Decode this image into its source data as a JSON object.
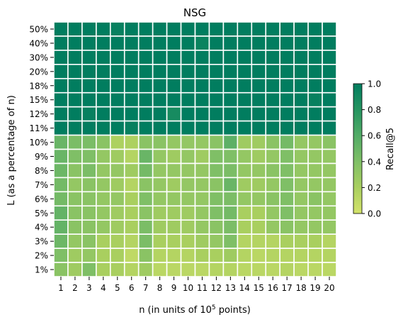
{
  "chart_data": {
    "type": "heatmap",
    "title": "NSG",
    "xlabel_prefix": "n (in units of 10",
    "xlabel_exponent": "5",
    "xlabel_suffix": " points)",
    "ylabel": "L (as a percentage of n)",
    "x_categories": [
      "1",
      "2",
      "3",
      "4",
      "5",
      "6",
      "7",
      "8",
      "9",
      "10",
      "11",
      "12",
      "13",
      "14",
      "15",
      "16",
      "17",
      "18",
      "19",
      "20"
    ],
    "y_categories": [
      "50%",
      "40%",
      "30%",
      "20%",
      "18%",
      "15%",
      "12%",
      "11%",
      "10%",
      "9%",
      "8%",
      "7%",
      "6%",
      "5%",
      "4%",
      "3%",
      "2%",
      "1%"
    ],
    "values": [
      [
        1,
        1,
        1,
        1,
        0.97,
        1,
        1,
        1,
        1,
        1,
        1,
        1,
        1,
        1,
        1,
        1,
        1,
        1,
        1,
        1
      ],
      [
        1,
        1,
        1,
        1,
        1,
        1,
        1,
        1,
        1,
        1,
        0.95,
        1,
        1,
        1,
        1,
        1,
        1,
        1,
        1,
        1
      ],
      [
        1,
        1,
        1,
        1,
        1,
        1,
        1,
        1,
        1,
        1,
        1,
        1,
        1,
        1,
        1,
        1,
        1,
        1,
        1,
        1
      ],
      [
        1,
        1,
        1,
        1,
        1,
        1,
        1,
        1,
        1,
        1,
        1,
        1,
        1,
        1,
        1,
        1,
        1,
        1,
        1,
        1
      ],
      [
        1,
        1,
        1,
        1,
        1,
        1,
        1,
        1,
        1,
        1,
        1,
        1,
        1,
        1,
        1,
        1,
        1,
        1,
        1,
        1
      ],
      [
        1,
        1,
        1,
        1,
        1,
        1,
        1,
        1,
        1,
        1,
        1,
        1,
        1,
        1,
        1,
        1,
        1,
        1,
        0.97,
        1
      ],
      [
        1,
        1,
        0.97,
        1,
        1,
        1,
        1,
        1,
        0.88,
        1,
        1,
        1,
        1,
        1,
        1,
        1,
        1,
        1,
        1,
        1
      ],
      [
        1,
        1,
        1,
        1,
        1,
        0.97,
        1,
        1,
        1,
        1,
        1,
        1,
        1,
        1,
        1,
        1,
        1,
        1,
        1,
        1
      ],
      [
        0.5,
        0.42,
        0.42,
        0.35,
        0.18,
        0.18,
        0.35,
        0.35,
        0.3,
        0.3,
        0.3,
        0.35,
        0.55,
        0.25,
        0.25,
        0.35,
        0.45,
        0.3,
        0.3,
        0.35
      ],
      [
        0.5,
        0.4,
        0.4,
        0.3,
        0.25,
        0.15,
        0.5,
        0.3,
        0.25,
        0.3,
        0.25,
        0.4,
        0.4,
        0.3,
        0.25,
        0.3,
        0.4,
        0.3,
        0.3,
        0.3
      ],
      [
        0.48,
        0.35,
        0.42,
        0.3,
        0.3,
        0.25,
        0.45,
        0.3,
        0.3,
        0.3,
        0.3,
        0.4,
        0.42,
        0.3,
        0.3,
        0.35,
        0.4,
        0.3,
        0.3,
        0.3
      ],
      [
        0.45,
        0.3,
        0.35,
        0.3,
        0.25,
        0.15,
        0.35,
        0.3,
        0.25,
        0.3,
        0.3,
        0.35,
        0.5,
        0.25,
        0.25,
        0.3,
        0.4,
        0.3,
        0.3,
        0.3
      ],
      [
        0.45,
        0.35,
        0.35,
        0.3,
        0.3,
        0.2,
        0.4,
        0.3,
        0.3,
        0.3,
        0.3,
        0.4,
        0.42,
        0.3,
        0.3,
        0.35,
        0.4,
        0.3,
        0.35,
        0.3
      ],
      [
        0.52,
        0.35,
        0.35,
        0.3,
        0.25,
        0.2,
        0.35,
        0.25,
        0.25,
        0.25,
        0.3,
        0.4,
        0.45,
        0.2,
        0.2,
        0.3,
        0.4,
        0.3,
        0.3,
        0.3
      ],
      [
        0.52,
        0.35,
        0.35,
        0.3,
        0.25,
        0.2,
        0.42,
        0.25,
        0.25,
        0.25,
        0.3,
        0.35,
        0.42,
        0.2,
        0.2,
        0.3,
        0.35,
        0.3,
        0.3,
        0.3
      ],
      [
        0.48,
        0.3,
        0.35,
        0.2,
        0.2,
        0.15,
        0.42,
        0.2,
        0.2,
        0.2,
        0.25,
        0.3,
        0.4,
        0.15,
        0.15,
        0.15,
        0.2,
        0.2,
        0.2,
        0.15
      ],
      [
        0.4,
        0.25,
        0.3,
        0.2,
        0.2,
        0.1,
        0.35,
        0.15,
        0.15,
        0.15,
        0.2,
        0.2,
        0.25,
        0.15,
        0.12,
        0.15,
        0.15,
        0.15,
        0.15,
        0.15
      ],
      [
        0.35,
        0.25,
        0.4,
        0.2,
        0.2,
        0.15,
        0.25,
        0.12,
        0.12,
        0.12,
        0.12,
        0.15,
        0.15,
        0.12,
        0.12,
        0.12,
        0.15,
        0.12,
        0.12,
        0.12
      ]
    ],
    "vmin": 0,
    "vmax": 1,
    "colorbar_label": "Recall@5",
    "colorbar_ticks": [
      "0.0",
      "0.2",
      "0.4",
      "0.6",
      "0.8",
      "1.0"
    ],
    "colorbar_tick_values": [
      0,
      0.2,
      0.4,
      0.6,
      0.8,
      1.0
    ],
    "colormap": [
      "#d4e36b",
      "#a9cf5f",
      "#7fbf66",
      "#52ab66",
      "#269460",
      "#017d5f"
    ],
    "cell_border_color": "#ffffff",
    "grid": false
  }
}
